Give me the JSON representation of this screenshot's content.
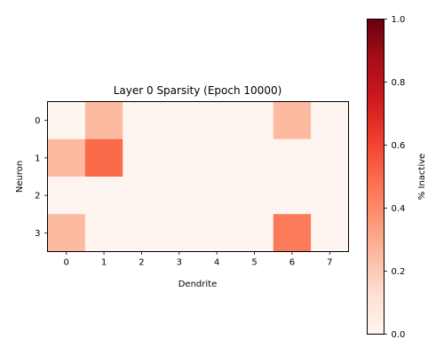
{
  "chart_data": {
    "type": "heatmap",
    "title": "Layer 0 Sparsity (Epoch 10000)",
    "xlabel": "Dendrite",
    "ylabel": "Neuron",
    "x_categories": [
      "0",
      "1",
      "2",
      "3",
      "4",
      "5",
      "6",
      "7"
    ],
    "y_categories": [
      "0",
      "1",
      "2",
      "3"
    ],
    "values": [
      [
        0.0,
        0.25,
        0.0,
        0.0,
        0.0,
        0.0,
        0.25,
        0.0
      ],
      [
        0.25,
        0.5,
        0.0,
        0.0,
        0.0,
        0.0,
        0.0,
        0.0
      ],
      [
        0.0,
        0.0,
        0.0,
        0.0,
        0.0,
        0.0,
        0.0,
        0.0
      ],
      [
        0.25,
        0.0,
        0.0,
        0.0,
        0.0,
        0.0,
        0.45,
        0.0
      ]
    ],
    "colormap": "Reds",
    "colorbar": {
      "label": "% Inactive",
      "range": [
        0.0,
        1.0
      ],
      "ticks": [
        "0.0",
        "0.2",
        "0.4",
        "0.6",
        "0.8",
        "1.0"
      ]
    },
    "grid": false
  }
}
